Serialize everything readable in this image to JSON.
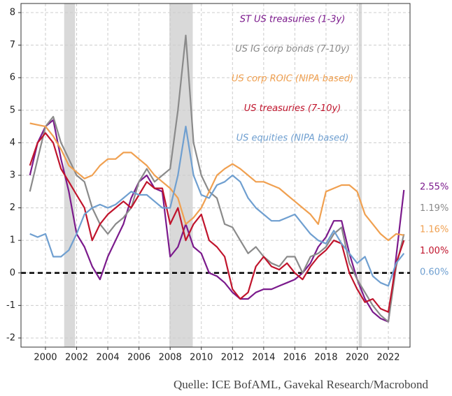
{
  "chart_data": {
    "type": "line",
    "source": "Quelle: ICE BofAML, Gavekal Research/Macrobond",
    "x": [
      1999,
      1999.5,
      2000,
      2000.5,
      2001,
      2001.5,
      2002,
      2002.5,
      2003,
      2003.5,
      2004,
      2004.5,
      2005,
      2005.5,
      2006,
      2006.5,
      2007,
      2007.5,
      2008,
      2008.5,
      2009,
      2009.5,
      2010,
      2010.5,
      2011,
      2011.5,
      2012,
      2012.5,
      2013,
      2013.5,
      2014,
      2014.5,
      2015,
      2015.5,
      2016,
      2016.5,
      2017,
      2017.5,
      2018,
      2018.5,
      2019,
      2019.5,
      2020,
      2020.5,
      2021,
      2021.5,
      2022,
      2022.5,
      2023
    ],
    "xlim": [
      1998.43,
      2023.39
    ],
    "xticks": [
      2000,
      2002,
      2004,
      2006,
      2008,
      2010,
      2012,
      2014,
      2016,
      2018,
      2020,
      2022
    ],
    "ylim": [
      -2.28,
      8.28
    ],
    "yticks": [
      -2,
      -1,
      0,
      1,
      2,
      3,
      4,
      5,
      6,
      7,
      8
    ],
    "grid": true,
    "reference_line": 0,
    "shaded_periods": [
      [
        2001.2,
        2001.9
      ],
      [
        2007.95,
        2009.45
      ],
      [
        2020.1,
        2020.3
      ]
    ],
    "series": [
      {
        "name": "ST US treasuries (1-3y)",
        "color": "#7b1a8c",
        "end_label": "2.55%",
        "values": [
          3.0,
          4.0,
          4.5,
          4.7,
          3.5,
          2.5,
          1.2,
          0.8,
          0.2,
          -0.2,
          0.5,
          1.0,
          1.5,
          2.3,
          2.8,
          3.0,
          2.6,
          2.5,
          0.5,
          0.8,
          1.5,
          0.8,
          0.6,
          0.0,
          -0.1,
          -0.3,
          -0.6,
          -0.8,
          -0.8,
          -0.6,
          -0.5,
          -0.5,
          -0.4,
          -0.3,
          -0.2,
          0.0,
          0.3,
          0.8,
          1.1,
          1.6,
          1.6,
          0.6,
          -0.2,
          -0.8,
          -1.2,
          -1.4,
          -1.5,
          0.5,
          2.55
        ]
      },
      {
        "name": "US IG corp bonds (7-10y)",
        "color": "#8a8a8a",
        "end_label": "1.19%",
        "values": [
          2.5,
          3.5,
          4.5,
          4.8,
          4.0,
          3.5,
          3.0,
          2.8,
          2.0,
          1.5,
          1.2,
          1.5,
          1.7,
          2.0,
          2.8,
          3.2,
          2.8,
          3.0,
          3.2,
          5.0,
          7.3,
          4.0,
          3.0,
          2.5,
          2.3,
          1.5,
          1.4,
          1.0,
          0.6,
          0.8,
          0.5,
          0.3,
          0.2,
          0.5,
          0.5,
          0.0,
          0.5,
          0.6,
          0.8,
          1.2,
          1.4,
          0.3,
          -0.2,
          -0.6,
          -1.0,
          -1.3,
          -1.5,
          0.2,
          1.19
        ]
      },
      {
        "name": "US corp ROIC (NIPA based)",
        "color": "#f0a050",
        "end_label": "1.16%",
        "values": [
          4.6,
          4.55,
          4.5,
          4.2,
          3.8,
          3.3,
          3.1,
          2.9,
          3.0,
          3.3,
          3.5,
          3.5,
          3.7,
          3.7,
          3.5,
          3.3,
          3.0,
          2.8,
          2.6,
          2.3,
          1.5,
          1.7,
          2.0,
          2.5,
          3.0,
          3.2,
          3.35,
          3.2,
          3.0,
          2.8,
          2.8,
          2.7,
          2.6,
          2.4,
          2.2,
          2.0,
          1.8,
          1.5,
          2.5,
          2.6,
          2.7,
          2.7,
          2.5,
          1.8,
          1.5,
          1.2,
          1.0,
          1.2,
          1.16
        ]
      },
      {
        "name": "US treasuries (7-10y)",
        "color": "#c0142c",
        "end_label": "1.00%",
        "values": [
          3.3,
          4.0,
          4.3,
          4.0,
          3.2,
          2.8,
          2.4,
          2.0,
          1.0,
          1.5,
          1.8,
          2.0,
          2.2,
          2.0,
          2.4,
          2.8,
          2.6,
          2.6,
          1.5,
          2.0,
          1.0,
          1.5,
          1.8,
          1.0,
          0.8,
          0.5,
          -0.5,
          -0.8,
          -0.6,
          0.2,
          0.5,
          0.2,
          0.1,
          0.3,
          0.0,
          -0.2,
          0.2,
          0.5,
          0.7,
          1.0,
          0.9,
          0.0,
          -0.5,
          -0.9,
          -0.8,
          -1.1,
          -1.2,
          0.3,
          1.0
        ]
      },
      {
        "name": "US equities (NIPA based)",
        "color": "#6f9fd0",
        "end_label": "0.60%",
        "values": [
          1.2,
          1.1,
          1.2,
          0.5,
          0.5,
          0.7,
          1.2,
          1.8,
          2.0,
          2.1,
          2.0,
          2.1,
          2.3,
          2.5,
          2.4,
          2.4,
          2.2,
          2.0,
          2.0,
          3.0,
          4.5,
          3.0,
          2.4,
          2.3,
          2.7,
          2.8,
          3.0,
          2.8,
          2.3,
          2.0,
          1.8,
          1.6,
          1.6,
          1.7,
          1.8,
          1.5,
          1.2,
          1.0,
          0.9,
          1.3,
          0.9,
          0.6,
          0.3,
          0.5,
          -0.1,
          -0.3,
          -0.4,
          0.3,
          0.6
        ]
      }
    ]
  }
}
